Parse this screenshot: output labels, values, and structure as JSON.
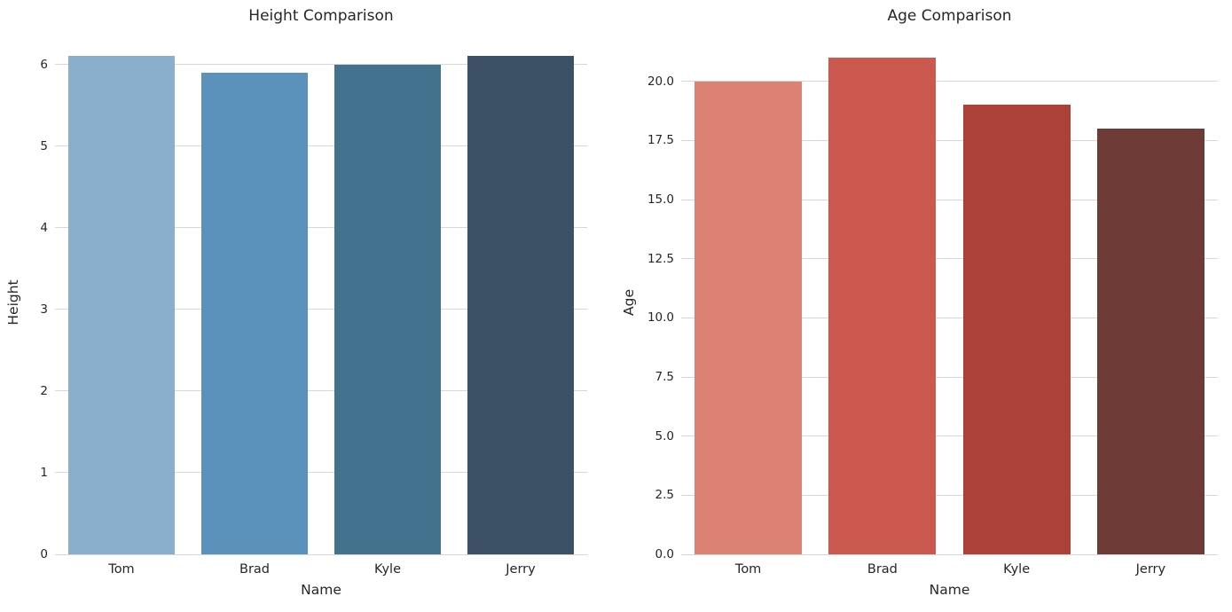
{
  "figure": {
    "background_color": "#ffffff",
    "grid_color": "#d7d7d7",
    "text_color": "#262626"
  },
  "chart_data": [
    {
      "type": "bar",
      "title": "Height Comparison",
      "xlabel": "Name",
      "ylabel": "Height",
      "categories": [
        "Tom",
        "Brad",
        "Kyle",
        "Jerry"
      ],
      "values": [
        6.1,
        5.9,
        6.0,
        6.1
      ],
      "bar_colors": [
        "#89afcc",
        "#5b92bb",
        "#42728e",
        "#3c5165"
      ],
      "ylim": [
        0,
        6.17
      ],
      "yticks": [
        0,
        1,
        2,
        3,
        4,
        5,
        6
      ],
      "ytick_labels": [
        "0",
        "1",
        "2",
        "3",
        "4",
        "5",
        "6"
      ],
      "grid": true,
      "legend_position": "none",
      "bar_rel_width": 0.8
    },
    {
      "type": "bar",
      "title": "Age Comparison",
      "xlabel": "Name",
      "ylabel": "Age",
      "categories": [
        "Tom",
        "Brad",
        "Kyle",
        "Jerry"
      ],
      "values": [
        20,
        21,
        19,
        18
      ],
      "bar_colors": [
        "#dd8273",
        "#cb594f",
        "#ab4137",
        "#6f3b37"
      ],
      "ylim": [
        0,
        21.3
      ],
      "yticks": [
        0,
        2.5,
        5,
        7.5,
        10,
        12.5,
        15,
        17.5,
        20
      ],
      "ytick_labels": [
        "0.0",
        "2.5",
        "5.0",
        "7.5",
        "10.0",
        "12.5",
        "15.0",
        "17.5",
        "20.0"
      ],
      "grid": true,
      "legend_position": "none",
      "bar_rel_width": 0.8
    }
  ]
}
